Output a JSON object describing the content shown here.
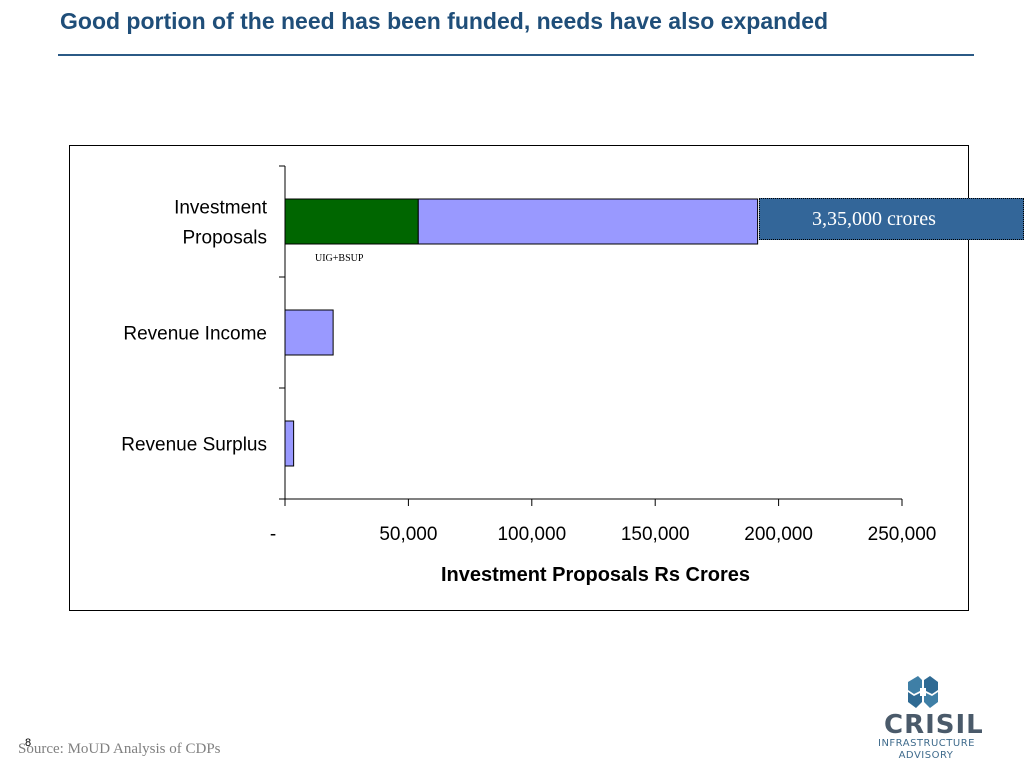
{
  "slide": {
    "title": "Good portion of the need has been funded, needs have also expanded",
    "source": "Source: MoUD Analysis of CDPs",
    "page_number": "8"
  },
  "logo": {
    "name": "CRISIL",
    "line1": "INFRASTRUCTURE",
    "line2": "ADVISORY",
    "colors": {
      "mark": "#3f7fa6",
      "text": "#4a5a6a"
    }
  },
  "callout": {
    "text": "3,35,000 crores",
    "color": "#336699"
  },
  "chart_data": {
    "type": "bar",
    "orientation": "horizontal",
    "stacked": true,
    "categories": [
      "Investment Proposals",
      "Revenue Income",
      "Revenue Surplus"
    ],
    "category_lines": [
      [
        "Investment",
        "Proposals"
      ],
      [
        "Revenue Income"
      ],
      [
        "Revenue Surplus"
      ]
    ],
    "series": [
      {
        "values": [
          54000,
          0,
          0
        ],
        "color": "#006600"
      },
      {
        "values": [
          137500,
          19500,
          3500
        ],
        "color": "#9999ff"
      }
    ],
    "annotations": [
      {
        "text": "UIG+BSUP",
        "category": "Investment Proposals"
      }
    ],
    "xlabel": "Investment Proposals Rs Crores",
    "ylabel": "",
    "xlim": [
      0,
      250000
    ],
    "ticks": [
      0,
      50000,
      100000,
      150000,
      200000,
      250000
    ],
    "tick_labels": [
      "-",
      "50,000",
      "100,000",
      "150,000",
      "200,000",
      "250,000"
    ],
    "grid": false,
    "legend": "none"
  }
}
